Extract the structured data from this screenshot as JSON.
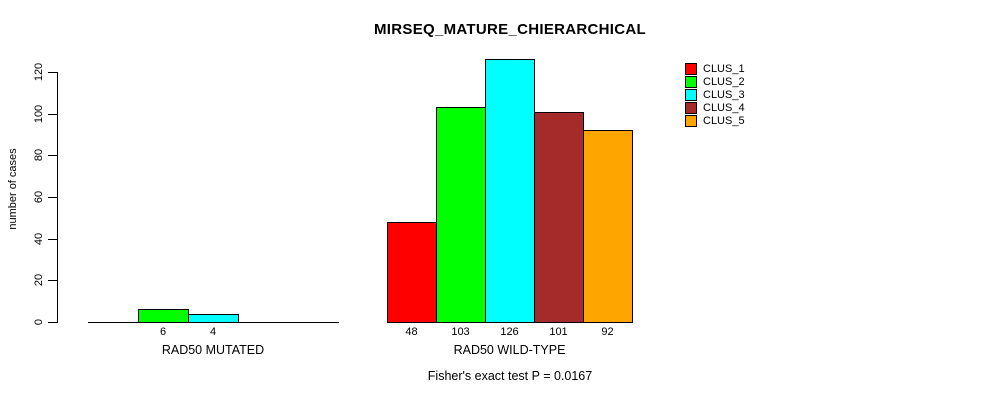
{
  "chart_data": {
    "type": "bar",
    "title": "MIRSEQ_MATURE_CHIERARCHICAL",
    "ylabel": "number of cases",
    "xlabel": "",
    "ylim": [
      0,
      120
    ],
    "yticks": [
      0,
      20,
      40,
      60,
      80,
      100,
      120
    ],
    "grid": false,
    "legend_position": "top-right",
    "series": [
      {
        "name": "CLUS_1",
        "color": "#FF0000"
      },
      {
        "name": "CLUS_2",
        "color": "#00FF00"
      },
      {
        "name": "CLUS_3",
        "color": "#00FFFF"
      },
      {
        "name": "CLUS_4",
        "color": "#A52A2A"
      },
      {
        "name": "CLUS_5",
        "color": "#FFA500"
      }
    ],
    "groups": [
      {
        "label": "RAD50 MUTATED",
        "values": [
          0,
          6,
          4,
          0,
          0
        ],
        "bar_labels": [
          "",
          "6",
          "4",
          "",
          ""
        ]
      },
      {
        "label": "RAD50 WILD-TYPE",
        "values": [
          48,
          103,
          126,
          101,
          92
        ],
        "bar_labels": [
          "48",
          "103",
          "126",
          "101",
          "92"
        ]
      }
    ],
    "note": "Fisher's exact test P = 0.0167"
  }
}
